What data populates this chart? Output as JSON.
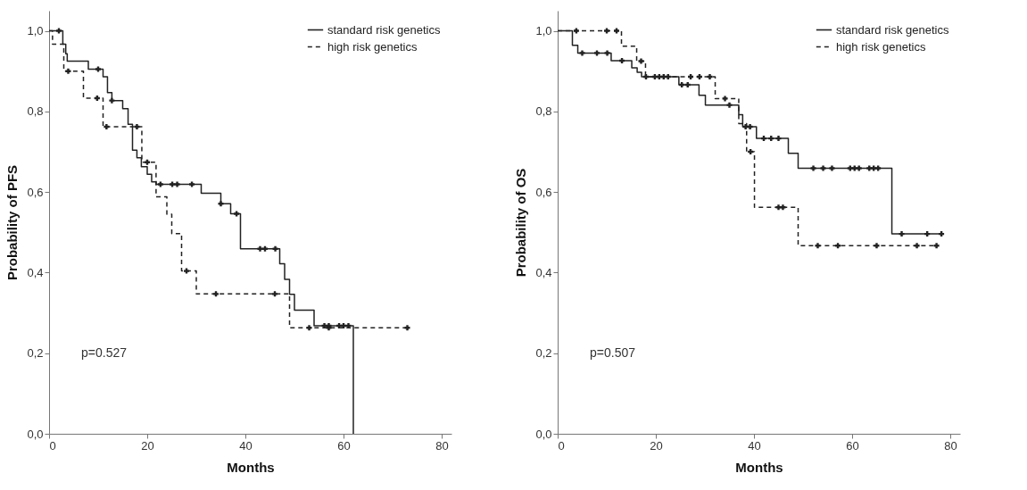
{
  "chart_data": [
    {
      "type": "step",
      "xlabel": "Months",
      "ylabel": "Probability of PFS",
      "xlim": [
        0,
        82
      ],
      "ylim": [
        0,
        1.05
      ],
      "xticks": [
        0,
        20,
        40,
        60,
        80
      ],
      "yticks": [
        {
          "value": 0,
          "label": "0,0"
        },
        {
          "value": 0.2,
          "label": "0,2"
        },
        {
          "value": 0.4,
          "label": "0,4"
        },
        {
          "value": 0.6,
          "label": "0,6"
        },
        {
          "value": 0.8,
          "label": "0,8"
        },
        {
          "value": 1,
          "label": "1,0"
        }
      ],
      "grid": false,
      "legend": "top right",
      "annotations": [
        "p=0.527"
      ],
      "series": [
        {
          "type": "step",
          "name": "standard risk genetics",
          "color": "#222222",
          "line_style": "solid",
          "x": [
            0,
            2.8,
            3.4,
            3.7,
            8,
            11,
            11.9,
            12.8,
            15,
            16.1,
            17,
            17.9,
            18.8,
            20,
            20.9,
            21.8,
            31,
            35,
            37,
            39,
            47,
            48,
            49,
            50,
            54,
            62
          ],
          "values": [
            1,
            0.967,
            0.943,
            0.925,
            0.905,
            0.886,
            0.847,
            0.827,
            0.807,
            0.768,
            0.704,
            0.685,
            0.663,
            0.644,
            0.625,
            0.619,
            0.597,
            0.571,
            0.546,
            0.459,
            0.422,
            0.383,
            0.346,
            0.307,
            0.268,
            0
          ]
        },
        {
          "type": "step",
          "name": "high risk genetics",
          "color": "#222222",
          "line_style": "dashed",
          "x": [
            0,
            0.7,
            3,
            7,
            11,
            18.9,
            21.8,
            24,
            25,
            27,
            30,
            49,
            73
          ],
          "values": [
            1,
            0.967,
            0.9,
            0.833,
            0.762,
            0.674,
            0.588,
            0.545,
            0.497,
            0.404,
            0.347,
            0.263,
            0.263
          ]
        },
        {
          "type": "scatter",
          "marker": "cross",
          "color": "#222222",
          "x": [
            2,
            10,
            12.8,
            22.7,
            25.1,
            26.1,
            29.1,
            35,
            38.2,
            43,
            44,
            46.1,
            56.1,
            57,
            59.1,
            60,
            61
          ],
          "values": [
            1,
            0.905,
            0.827,
            0.619,
            0.619,
            0.619,
            0.619,
            0.571,
            0.546,
            0.459,
            0.459,
            0.459,
            0.268,
            0.268,
            0.268,
            0.268,
            0.268
          ]
        },
        {
          "type": "scatter",
          "marker": "cross",
          "color": "#222222",
          "x": [
            3.9,
            9.8,
            11.7,
            17.9,
            20,
            28,
            34,
            46,
            53,
            57,
            73
          ],
          "values": [
            0.9,
            0.833,
            0.762,
            0.762,
            0.674,
            0.404,
            0.347,
            0.347,
            0.263,
            0.263,
            0.263
          ]
        }
      ]
    },
    {
      "type": "step",
      "xlabel": "Months",
      "ylabel": "Probability of OS",
      "xlim": [
        0,
        82
      ],
      "ylim": [
        0,
        1.05
      ],
      "xticks": [
        0,
        20,
        40,
        60,
        80
      ],
      "yticks": [
        {
          "value": 0,
          "label": "0,0"
        },
        {
          "value": 0.2,
          "label": "0,2"
        },
        {
          "value": 0.4,
          "label": "0,4"
        },
        {
          "value": 0.6,
          "label": "0,6"
        },
        {
          "value": 0.8,
          "label": "0,8"
        },
        {
          "value": 1,
          "label": "1,0"
        }
      ],
      "grid": false,
      "legend": "top right",
      "annotations": [
        "p=0.507"
      ],
      "series": [
        {
          "type": "step",
          "name": "standard risk genetics",
          "color": "#222222",
          "line_style": "solid",
          "x": [
            0,
            3,
            4.1,
            10.9,
            15.1,
            16.2,
            17.1,
            24.7,
            28.8,
            30.1,
            36.9,
            37.7,
            40.5,
            47,
            49,
            68.1,
            78.2
          ],
          "values": [
            1,
            0.964,
            0.945,
            0.926,
            0.908,
            0.897,
            0.886,
            0.866,
            0.84,
            0.816,
            0.792,
            0.762,
            0.733,
            0.696,
            0.659,
            0.496,
            0.496
          ]
        },
        {
          "type": "step",
          "name": "high risk genetics",
          "color": "#222222",
          "line_style": "dashed",
          "x": [
            0,
            13,
            16.1,
            17.9,
            32.1,
            36.9,
            38.5,
            40.1,
            49,
            77.2
          ],
          "values": [
            1,
            0.962,
            0.925,
            0.886,
            0.832,
            0.77,
            0.7,
            0.562,
            0.467,
            0.467
          ]
        },
        {
          "type": "scatter",
          "marker": "cross",
          "color": "#222222",
          "x": [
            5,
            8,
            10.1,
            13.1,
            18,
            19.8,
            20.7,
            21.6,
            22.5,
            25.3,
            26.5,
            35,
            38.3,
            39.2,
            42,
            43.5,
            45,
            52.1,
            54.1,
            55.9,
            59.6,
            60.5,
            61.4,
            63.5,
            64.4,
            65.3,
            70.1,
            75.3,
            78.2
          ],
          "values": [
            0.945,
            0.945,
            0.945,
            0.926,
            0.886,
            0.886,
            0.886,
            0.886,
            0.886,
            0.866,
            0.866,
            0.816,
            0.762,
            0.762,
            0.733,
            0.733,
            0.733,
            0.659,
            0.659,
            0.659,
            0.659,
            0.659,
            0.659,
            0.659,
            0.659,
            0.659,
            0.496,
            0.496,
            0.496
          ]
        },
        {
          "type": "scatter",
          "marker": "cross",
          "color": "#222222",
          "x": [
            3.8,
            10,
            12,
            17,
            27.1,
            28.9,
            31,
            34.1,
            39.3,
            45,
            45.9,
            53,
            57.1,
            65,
            73.2,
            77.2
          ],
          "values": [
            1,
            1,
            1,
            0.925,
            0.886,
            0.886,
            0.886,
            0.832,
            0.7,
            0.562,
            0.562,
            0.467,
            0.467,
            0.467,
            0.467,
            0.467
          ]
        }
      ]
    }
  ]
}
